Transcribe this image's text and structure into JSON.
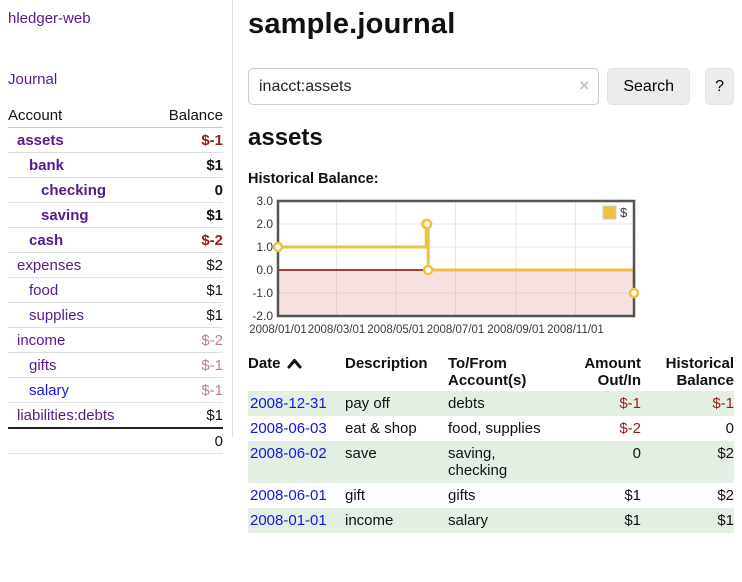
{
  "colors": {
    "accent_purple": "#561b8b",
    "link_blue": "#1414e6",
    "negative_strong": "#9c1919",
    "negative_dim": "#c17f7f",
    "row_green": "#e4efe4",
    "chart_line_gold": "#edc240",
    "chart_negative_fill": "#f9dcdc",
    "chart_zero_line": "#8b0000"
  },
  "sidebar": {
    "brand": "hledger-web",
    "journal_link": "Journal",
    "accounts": {
      "headers": {
        "account": "Account",
        "balance": "Balance"
      },
      "rows": [
        {
          "name": "assets",
          "balance": "$-1"
        },
        {
          "name": "bank",
          "balance": "$1"
        },
        {
          "name": "checking",
          "balance": "0"
        },
        {
          "name": "saving",
          "balance": "$1"
        },
        {
          "name": "cash",
          "balance": "$-2"
        },
        {
          "name": "expenses",
          "balance": "$2"
        },
        {
          "name": "food",
          "balance": "$1"
        },
        {
          "name": "supplies",
          "balance": "$1"
        },
        {
          "name": "income",
          "balance": "$-2"
        },
        {
          "name": "gifts",
          "balance": "$-1"
        },
        {
          "name": "salary",
          "balance": "$-1"
        },
        {
          "name": "liabilities:debts",
          "balance": "$1"
        }
      ],
      "total": "0"
    }
  },
  "header": {
    "title": "sample.journal"
  },
  "search": {
    "query": "inacct:assets",
    "clear_icon": "×",
    "button_label": "Search",
    "help_label": "?"
  },
  "account_page": {
    "title": "assets",
    "chart_label": "Historical Balance:"
  },
  "chart_data": {
    "type": "line",
    "title": "Historical Balance",
    "step": true,
    "series": [
      {
        "name": "$",
        "color": "#edc240",
        "points": [
          {
            "x": "2008-01-01",
            "y": 1
          },
          {
            "x": "2008-06-01",
            "y": 2
          },
          {
            "x": "2008-06-02",
            "y": 2
          },
          {
            "x": "2008-06-03",
            "y": 0
          },
          {
            "x": "2008-12-31",
            "y": -1
          }
        ]
      }
    ],
    "xlim": [
      "2008-01-01",
      "2008-12-31"
    ],
    "ylim": [
      -2,
      3
    ],
    "y_ticks": [
      "3.0",
      "2.0",
      "1.0",
      "0.0",
      "-1.0",
      "-2.0"
    ],
    "x_ticks": [
      "2008/01/01",
      "2008/03/01",
      "2008/05/01",
      "2008/07/01",
      "2008/09/01",
      "2008/11/01"
    ],
    "legend": {
      "position": "top-right",
      "label": "$"
    },
    "grid": true,
    "negative_region": {
      "from": 0,
      "to": -2
    }
  },
  "register": {
    "headers": [
      "Date",
      "Description",
      "To/From Account(s)",
      "Amount Out/In",
      "Historical Balance"
    ],
    "sort": {
      "column": "Date",
      "direction": "ascending"
    },
    "rows": [
      {
        "date": "2008-12-31",
        "description": "pay off",
        "accounts": "debts",
        "amount": "$-1",
        "balance": "$-1"
      },
      {
        "date": "2008-06-03",
        "description": "eat & shop",
        "accounts": "food, supplies",
        "amount": "$-2",
        "balance": "0"
      },
      {
        "date": "2008-06-02",
        "description": "save",
        "accounts": "saving, checking",
        "amount": "0",
        "balance": "$2"
      },
      {
        "date": "2008-06-01",
        "description": "gift",
        "accounts": "gifts",
        "amount": "$1",
        "balance": "$2"
      },
      {
        "date": "2008-01-01",
        "description": "income",
        "accounts": "salary",
        "amount": "$1",
        "balance": "$1"
      }
    ]
  }
}
